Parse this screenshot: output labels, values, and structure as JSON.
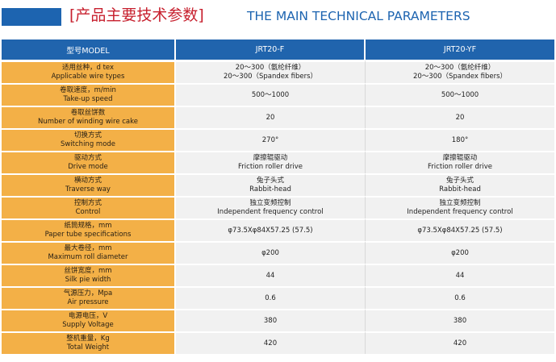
{
  "header": {
    "title_cn": "[产品主要技术参数]",
    "title_en": "THE MAIN TECHNICAL PARAMETERS"
  },
  "table": {
    "columns": [
      "型号MODEL",
      "JRT20-F",
      "JRT20-YF"
    ],
    "rows": [
      {
        "label_cn": "适用丝种，d tex",
        "label_en": "Applicable wire types",
        "v1": [
          "20～300（氨纶纤维）",
          "20～300（Spandex fibers）"
        ],
        "v2": [
          "20～300（氨纶纤维）",
          "20～300（Spandex fibers）"
        ]
      },
      {
        "label_cn": "卷取速度，m/min",
        "label_en": "Take-up speed",
        "v1": [
          "500～1000"
        ],
        "v2": [
          "500～1000"
        ]
      },
      {
        "label_cn": "卷取丝饼数",
        "label_en": "Number of winding wire cake",
        "v1": [
          "20"
        ],
        "v2": [
          "20"
        ]
      },
      {
        "label_cn": "切换方式",
        "label_en": "Switching mode",
        "v1": [
          "270°"
        ],
        "v2": [
          "180°"
        ]
      },
      {
        "label_cn": "驱动方式",
        "label_en": "Drive mode",
        "v1": [
          "摩擦辊驱动",
          "Friction roller drive"
        ],
        "v2": [
          "摩擦辊驱动",
          "Friction roller drive"
        ]
      },
      {
        "label_cn": "横动方式",
        "label_en": "Traverse way",
        "v1": [
          "兔子头式",
          "Rabbit-head"
        ],
        "v2": [
          "兔子头式",
          "Rabbit-head"
        ]
      },
      {
        "label_cn": "控制方式",
        "label_en": "Control",
        "v1": [
          "独立变频控制",
          "Independent frequency control"
        ],
        "v2": [
          "独立变频控制",
          "Independent frequency control"
        ]
      },
      {
        "label_cn": "纸筒规格，mm",
        "label_en": "Paper tube specifications",
        "v1": [
          "φ73.5Xφ84X57.25 (57.5)"
        ],
        "v2": [
          "φ73.5Xφ84X57.25 (57.5)"
        ]
      },
      {
        "label_cn": "最大卷径，mm",
        "label_en": "Maximum roll diameter",
        "v1": [
          "φ200"
        ],
        "v2": [
          "φ200"
        ]
      },
      {
        "label_cn": "丝饼宽度，mm",
        "label_en": "Silk pie width",
        "v1": [
          "44"
        ],
        "v2": [
          "44"
        ]
      },
      {
        "label_cn": "气源压力，Mpa",
        "label_en": "Air pressure",
        "v1": [
          "0.6"
        ],
        "v2": [
          "0.6"
        ]
      },
      {
        "label_cn": "电源电压，V",
        "label_en": "Supply Voltage",
        "v1": [
          "380"
        ],
        "v2": [
          "380"
        ]
      },
      {
        "label_cn": "整机重量，Kg",
        "label_en": "Total Weight",
        "v1": [
          "420"
        ],
        "v2": [
          "420"
        ]
      }
    ]
  },
  "colors": {
    "header_blue": "#2064ad",
    "label_orange": "#f3b047",
    "title_red": "#c7202e",
    "cell_grey": "#f1f1f1"
  }
}
